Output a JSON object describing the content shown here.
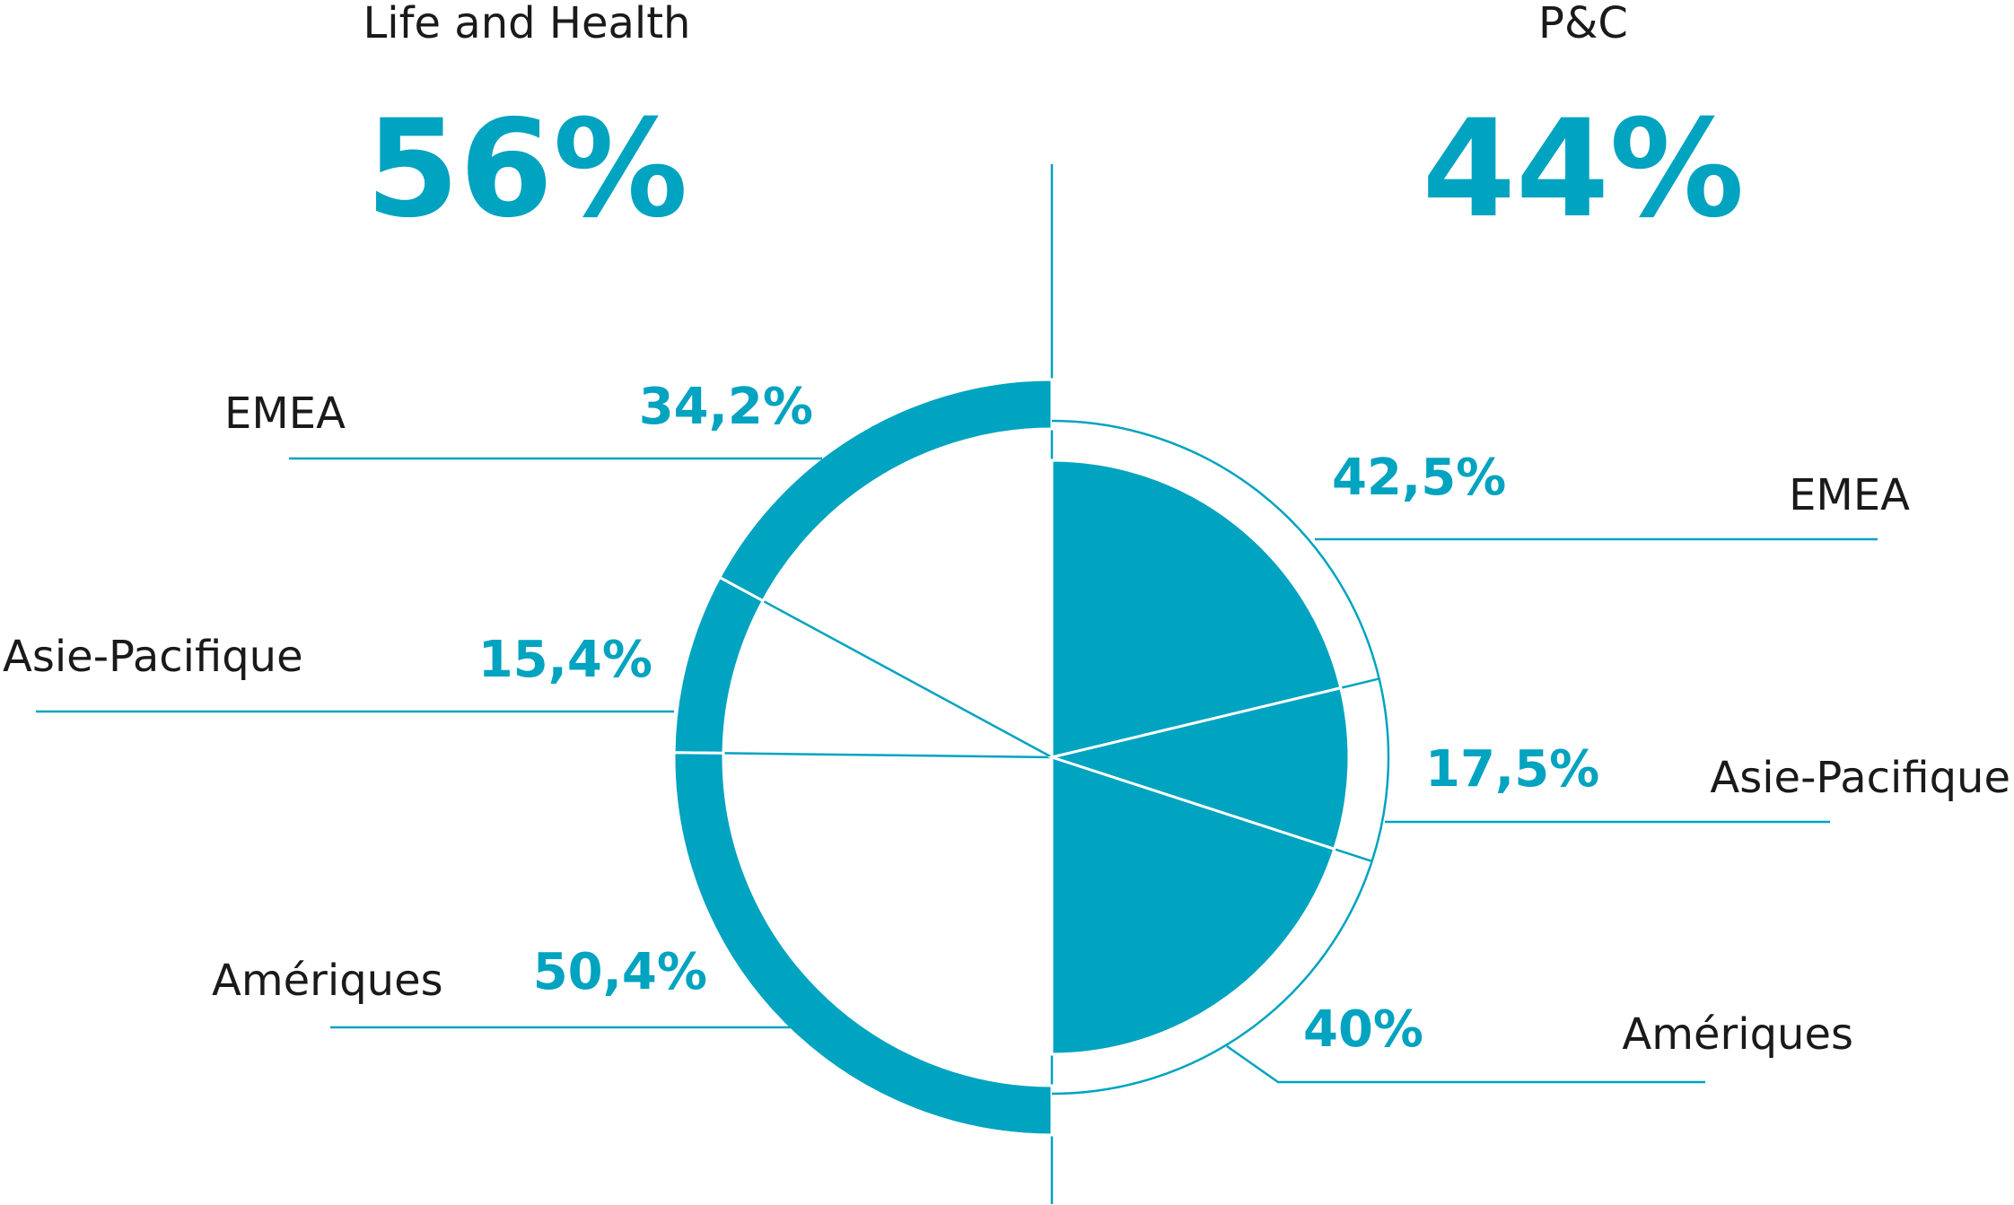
{
  "chart_data": {
    "type": "split-pie",
    "color": "#00a3c0",
    "sections": [
      {
        "title": "Life and Health",
        "share": 56,
        "share_label": "56%",
        "categories": [
          "EMEA",
          "Asie-Pacifique",
          "Amériques"
        ],
        "values": [
          34.2,
          15.4,
          50.4
        ],
        "value_labels": [
          "34,2%",
          "15,4%",
          "50,4%"
        ]
      },
      {
        "title": "P&C",
        "share": 44,
        "share_label": "44%",
        "categories": [
          "EMEA",
          "Asie-Pacifique",
          "Amériques"
        ],
        "values": [
          42.5,
          17.5,
          40
        ],
        "value_labels": [
          "42,5%",
          "17,5%",
          "40%"
        ]
      }
    ]
  }
}
